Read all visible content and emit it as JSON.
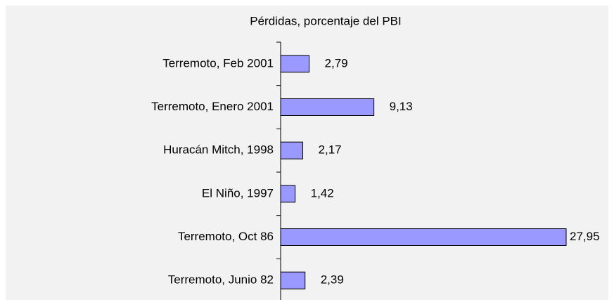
{
  "chart_data": {
    "type": "bar",
    "orientation": "horizontal",
    "title": "Pérdidas, porcentaje del PBI",
    "categories": [
      "Terremoto, Feb 2001",
      "Terremoto, Enero 2001",
      "Huracán Mitch, 1998",
      "El Niño, 1997",
      "Terremoto, Oct 86",
      "Terremoto, Junio 82"
    ],
    "values": [
      2.79,
      9.13,
      2.17,
      1.42,
      27.95,
      2.39
    ],
    "value_labels": [
      "2,79",
      "9,13",
      "2,17",
      "1,42",
      "27,95",
      "2,39"
    ],
    "color": "#9999ff"
  }
}
